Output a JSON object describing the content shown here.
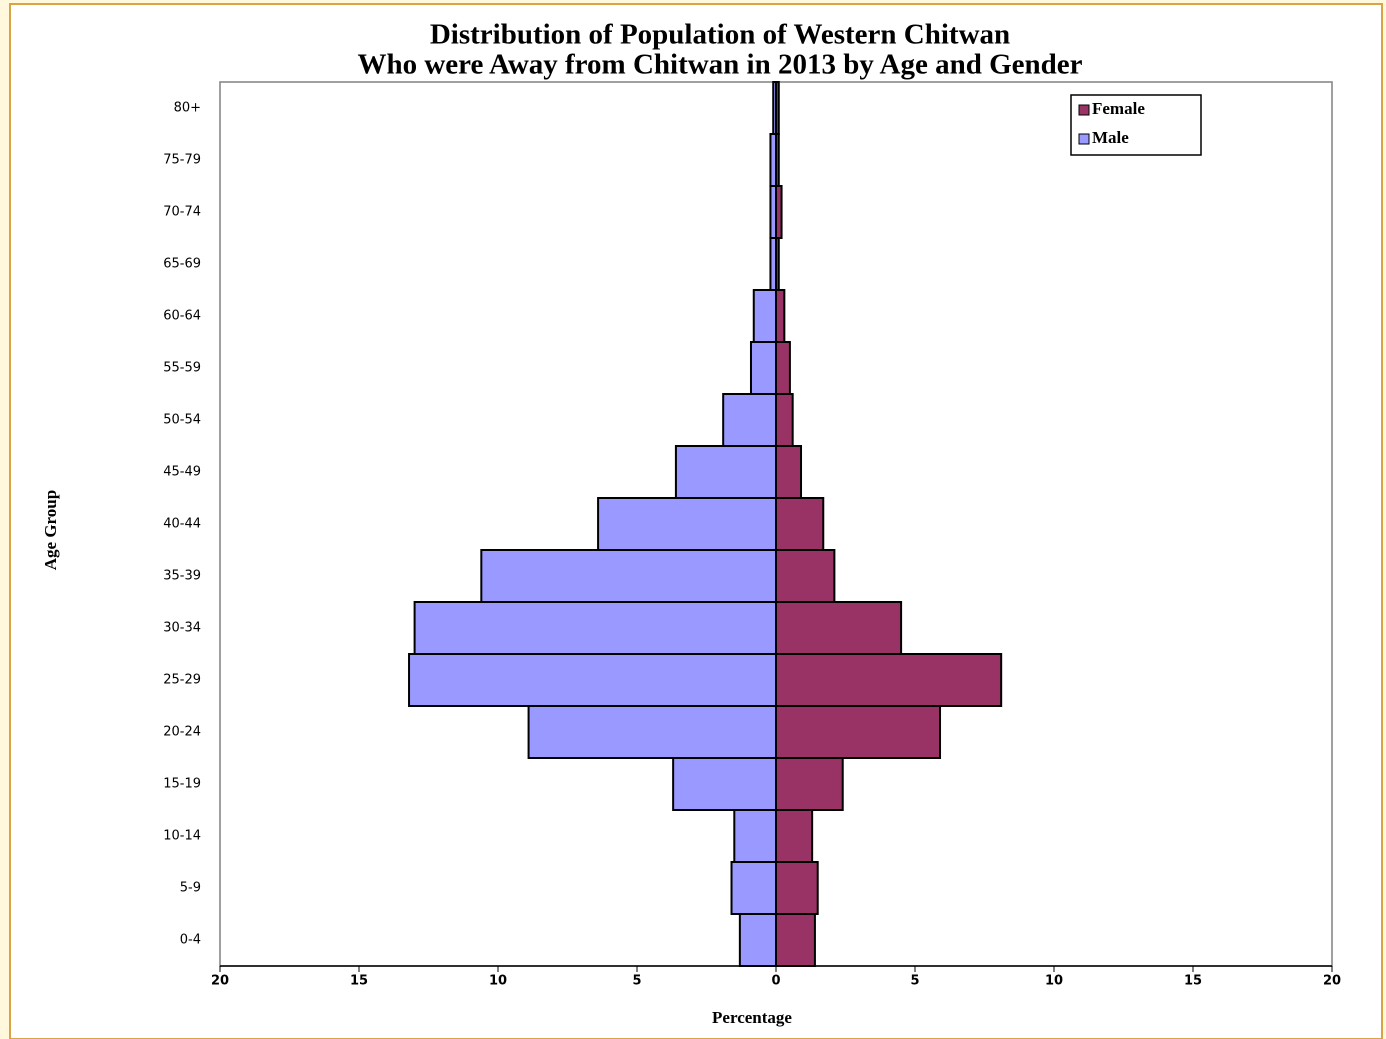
{
  "chart_data": {
    "type": "pyramid",
    "title": [
      "Distribution of Population of Western Chitwan",
      "Who were Away from Chitwan in 2013 by Age and Gender"
    ],
    "x_label": "Percentage",
    "y_label": "Age Group",
    "categories": [
      "0-4",
      "5-9",
      "10-14",
      "15-19",
      "20-24",
      "25-29",
      "30-34",
      "35-39",
      "40-44",
      "45-49",
      "50-54",
      "55-59",
      "60-64",
      "65-69",
      "70-74",
      "75-79",
      "80+"
    ],
    "series": [
      {
        "name": "Female",
        "color": "#993366",
        "values": [
          1.4,
          1.5,
          1.3,
          2.4,
          5.9,
          8.1,
          4.5,
          2.1,
          1.7,
          0.9,
          0.6,
          0.5,
          0.3,
          0.1,
          0.2,
          0.1,
          0.1
        ]
      },
      {
        "name": "Male",
        "color": "#9999ff",
        "values": [
          -1.3,
          -1.6,
          -1.5,
          -3.7,
          -8.9,
          -13.2,
          -13.0,
          -10.6,
          -6.4,
          -3.6,
          -1.9,
          -0.9,
          -0.8,
          -0.2,
          -0.2,
          -0.2,
          -0.1
        ]
      }
    ],
    "xlim": [
      -20,
      20
    ],
    "xticks": [
      {
        "value": -20,
        "label": "20"
      },
      {
        "value": -15,
        "label": "15"
      },
      {
        "value": -10,
        "label": "10"
      },
      {
        "value": -5,
        "label": "5"
      },
      0,
      5,
      10,
      15,
      20
    ],
    "legend": "top-right"
  }
}
